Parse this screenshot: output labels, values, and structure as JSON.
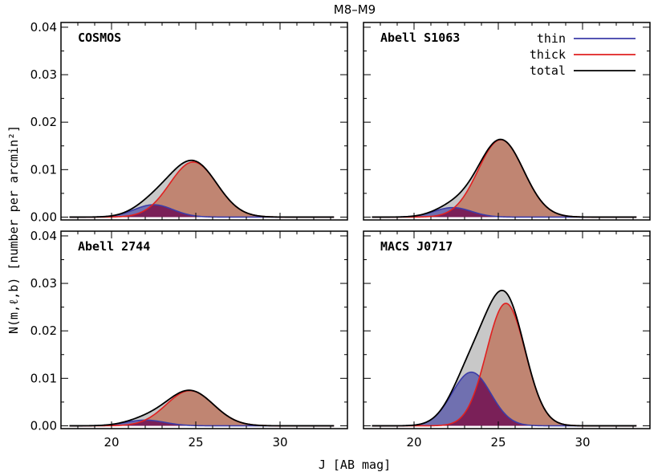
{
  "chart_data": {
    "type": "area",
    "title": "M8–M9",
    "xlabel": "J [AB mag]",
    "ylabel": "N(m,ℓ,b) [number per arcmin²]",
    "xlim": [
      17.0,
      34.0
    ],
    "ylim": [
      -0.0006,
      0.041
    ],
    "xticks": [
      "20",
      "25",
      "30"
    ],
    "yticks": [
      "0.00",
      "0.01",
      "0.02",
      "0.03",
      "0.04"
    ],
    "legend": {
      "position": "top-right",
      "entries": [
        {
          "label": "thin",
          "color": "#3c3ca8"
        },
        {
          "label": "thick",
          "color": "#e02020"
        },
        {
          "label": "total",
          "color": "#000000"
        }
      ]
    },
    "fill_colors": {
      "total": "#c8c8c8",
      "thick": "#c08572",
      "thin": "#7070b0",
      "overlap": "#7a2058"
    },
    "panels": [
      {
        "name": "COSMOS",
        "thin": {
          "amp": 0.0026,
          "mu": 22.5,
          "sigma": 1.15
        },
        "thick": {
          "amp": 0.0116,
          "mu": 24.85,
          "sigma": 1.4
        }
      },
      {
        "name": "Abell S1063",
        "thin": {
          "amp": 0.002,
          "mu": 22.3,
          "sigma": 1.1
        },
        "thick": {
          "amp": 0.0163,
          "mu": 25.15,
          "sigma": 1.35
        }
      },
      {
        "name": "Abell 2744",
        "thin": {
          "amp": 0.0012,
          "mu": 22.0,
          "sigma": 1.15
        },
        "thick": {
          "amp": 0.0074,
          "mu": 24.65,
          "sigma": 1.4
        }
      },
      {
        "name": "MACS J0717",
        "thin": {
          "amp": 0.0113,
          "mu": 23.4,
          "sigma": 1.15
        },
        "thick": {
          "amp": 0.0258,
          "mu": 25.45,
          "sigma": 1.15
        }
      }
    ]
  }
}
